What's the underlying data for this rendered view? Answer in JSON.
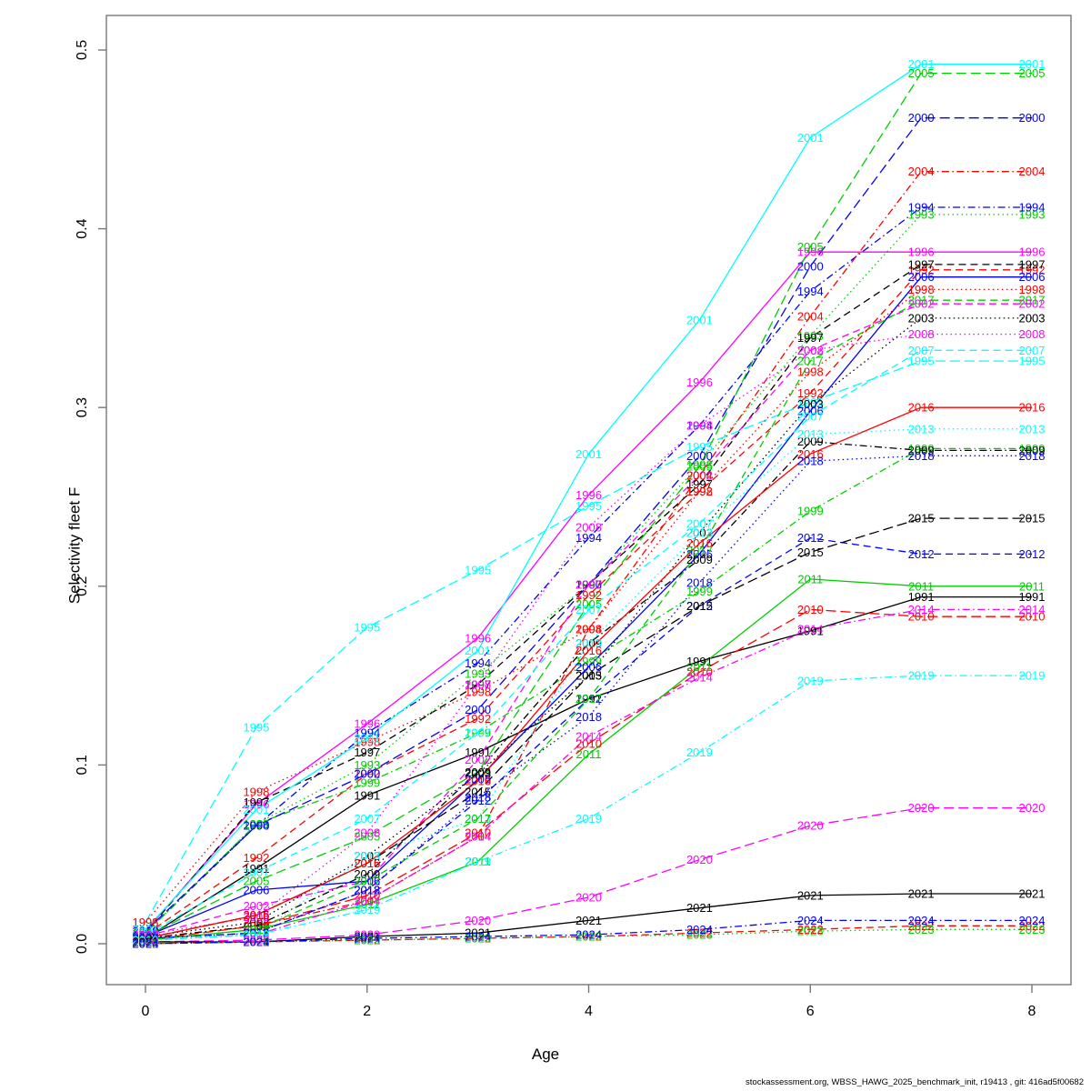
{
  "axes": {
    "x_title": "Age",
    "y_title": "Selectivity fleet F",
    "x_ticks": [
      0,
      2,
      4,
      6,
      8
    ],
    "y_ticks": [
      "0.0",
      "0.1",
      "0.2",
      "0.3",
      "0.4",
      "0.5"
    ]
  },
  "footer": "stockassessment.org, WBSS_HAWG_2025_benchmark_init, r19413 , git: 416ad5f00682",
  "chart_data": {
    "type": "line",
    "title": "",
    "xlabel": "Age",
    "ylabel": "Selectivity fleet F",
    "x": [
      0,
      1,
      2,
      3,
      4,
      5,
      6,
      7,
      8
    ],
    "xlim": [
      0,
      8
    ],
    "ylim": [
      0.0,
      0.5
    ],
    "grid": false,
    "legend": "labels-on-lines",
    "label_every_point": true,
    "series": [
      {
        "name": "1991",
        "color": "#000000",
        "linetype": "solid",
        "values": [
          0.003,
          0.042,
          0.083,
          0.107,
          0.137,
          0.158,
          0.175,
          0.194,
          0.194
        ]
      },
      {
        "name": "1992",
        "color": "#FF0000",
        "linetype": "dashed",
        "values": [
          0.005,
          0.048,
          0.095,
          0.126,
          0.195,
          0.253,
          0.308,
          0.377,
          0.377
        ]
      },
      {
        "name": "1993",
        "color": "#00CD00",
        "linetype": "dotted",
        "values": [
          0.006,
          0.067,
          0.1,
          0.151,
          0.201,
          0.268,
          0.34,
          0.408,
          0.408
        ]
      },
      {
        "name": "1994",
        "color": "#0000FF",
        "linetype": "dotdash",
        "values": [
          0.006,
          0.066,
          0.118,
          0.157,
          0.227,
          0.29,
          0.365,
          0.412,
          0.412
        ]
      },
      {
        "name": "1995",
        "color": "#00FFFF",
        "linetype": "longdash",
        "values": [
          0.012,
          0.121,
          0.177,
          0.209,
          0.245,
          0.278,
          0.303,
          0.326,
          0.326
        ]
      },
      {
        "name": "1996",
        "color": "#FF00FF",
        "linetype": "solid",
        "values": [
          0.007,
          0.078,
          0.123,
          0.171,
          0.251,
          0.314,
          0.387,
          0.387,
          0.387
        ]
      },
      {
        "name": "1997",
        "color": "#000000",
        "linetype": "dashed",
        "values": [
          0.006,
          0.079,
          0.107,
          0.145,
          0.201,
          0.257,
          0.339,
          0.38,
          0.38
        ]
      },
      {
        "name": "1998",
        "color": "#FF0000",
        "linetype": "dotted",
        "values": [
          0.012,
          0.085,
          0.113,
          0.141,
          0.176,
          0.253,
          0.32,
          0.366,
          0.366
        ]
      },
      {
        "name": "1999",
        "color": "#00CD00",
        "linetype": "dotdash",
        "values": [
          0.006,
          0.067,
          0.09,
          0.118,
          0.158,
          0.197,
          0.242,
          0.277,
          0.277
        ]
      },
      {
        "name": "2000",
        "color": "#0000FF",
        "linetype": "longdash",
        "values": [
          0.007,
          0.066,
          0.095,
          0.131,
          0.201,
          0.273,
          0.379,
          0.462,
          0.462
        ]
      },
      {
        "name": "2001",
        "color": "#00FFFF",
        "linetype": "solid",
        "values": [
          0.008,
          0.075,
          0.115,
          0.164,
          0.274,
          0.349,
          0.451,
          0.492,
          0.492
        ]
      },
      {
        "name": "2002",
        "color": "#FF00FF",
        "linetype": "dashed",
        "values": [
          0.004,
          0.021,
          0.035,
          0.103,
          0.201,
          0.262,
          0.332,
          0.358,
          0.358
        ]
      },
      {
        "name": "2003",
        "color": "#000000",
        "linetype": "dotted",
        "values": [
          0.004,
          0.012,
          0.049,
          0.095,
          0.15,
          0.23,
          0.302,
          0.35,
          0.35
        ]
      },
      {
        "name": "2004",
        "color": "#FF0000",
        "linetype": "dotdash",
        "values": [
          0.003,
          0.01,
          0.024,
          0.06,
          0.176,
          0.262,
          0.351,
          0.432,
          0.432
        ]
      },
      {
        "name": "2005",
        "color": "#00CD00",
        "linetype": "longdash",
        "values": [
          0.004,
          0.035,
          0.06,
          0.096,
          0.19,
          0.267,
          0.39,
          0.487,
          0.487
        ]
      },
      {
        "name": "2006",
        "color": "#0000FF",
        "linetype": "solid",
        "values": [
          0.004,
          0.03,
          0.035,
          0.092,
          0.155,
          0.218,
          0.298,
          0.373,
          0.373
        ]
      },
      {
        "name": "2007",
        "color": "#00FFFF",
        "linetype": "dashed",
        "values": [
          0.005,
          0.04,
          0.07,
          0.118,
          0.187,
          0.235,
          0.295,
          0.332,
          0.332
        ]
      },
      {
        "name": "2008",
        "color": "#FF00FF",
        "linetype": "dotted",
        "values": [
          0.005,
          0.015,
          0.062,
          0.145,
          0.233,
          0.29,
          0.332,
          0.341,
          0.341
        ]
      },
      {
        "name": "2009",
        "color": "#000000",
        "linetype": "dotdash",
        "values": [
          0.003,
          0.01,
          0.039,
          0.096,
          0.168,
          0.215,
          0.281,
          0.276,
          0.276
        ]
      },
      {
        "name": "2010",
        "color": "#FF0000",
        "linetype": "longdash",
        "values": [
          0.002,
          0.01,
          0.027,
          0.062,
          0.112,
          0.152,
          0.187,
          0.183,
          0.183
        ]
      },
      {
        "name": "2011",
        "color": "#00CD00",
        "linetype": "solid",
        "values": [
          0.002,
          0.008,
          0.022,
          0.046,
          0.106,
          0.155,
          0.204,
          0.2,
          0.2
        ]
      },
      {
        "name": "2012",
        "color": "#0000FF",
        "linetype": "dashed",
        "values": [
          0.003,
          0.006,
          0.03,
          0.08,
          0.137,
          0.189,
          0.227,
          0.218,
          0.218
        ]
      },
      {
        "name": "2013",
        "color": "#00FFFF",
        "linetype": "dotted",
        "values": [
          0.003,
          0.005,
          0.049,
          0.07,
          0.168,
          0.23,
          0.285,
          0.288,
          0.288
        ]
      },
      {
        "name": "2014",
        "color": "#FF00FF",
        "linetype": "dotdash",
        "values": [
          0.002,
          0.005,
          0.024,
          0.06,
          0.116,
          0.149,
          0.176,
          0.187,
          0.187
        ]
      },
      {
        "name": "2015",
        "color": "#000000",
        "linetype": "longdash",
        "values": [
          0.003,
          0.016,
          0.045,
          0.085,
          0.15,
          0.189,
          0.219,
          0.238,
          0.238
        ]
      },
      {
        "name": "2016",
        "color": "#FF0000",
        "linetype": "solid",
        "values": [
          0.003,
          0.016,
          0.045,
          0.091,
          0.164,
          0.224,
          0.274,
          0.3,
          0.3
        ]
      },
      {
        "name": "2017",
        "color": "#00CD00",
        "linetype": "dashed",
        "values": [
          0.002,
          0.008,
          0.035,
          0.07,
          0.137,
          0.22,
          0.326,
          0.36,
          0.36
        ]
      },
      {
        "name": "2018",
        "color": "#0000FF",
        "linetype": "dotted",
        "values": [
          0.003,
          0.006,
          0.03,
          0.082,
          0.127,
          0.202,
          0.27,
          0.273,
          0.273
        ]
      },
      {
        "name": "2019",
        "color": "#00FFFF",
        "linetype": "dotdash",
        "values": [
          0.002,
          0.005,
          0.019,
          0.046,
          0.07,
          0.107,
          0.147,
          0.15,
          0.15
        ]
      },
      {
        "name": "2020",
        "color": "#FF00FF",
        "linetype": "longdash",
        "values": [
          0.001,
          0.002,
          0.005,
          0.013,
          0.026,
          0.047,
          0.066,
          0.076,
          0.076
        ]
      },
      {
        "name": "2021",
        "color": "#000000",
        "linetype": "solid",
        "values": [
          0.001,
          0.001,
          0.004,
          0.006,
          0.013,
          0.02,
          0.027,
          0.028,
          0.028
        ]
      },
      {
        "name": "2022",
        "color": "#FF0000",
        "linetype": "dashed",
        "values": [
          0.0,
          0.001,
          0.002,
          0.003,
          0.004,
          0.006,
          0.008,
          0.01,
          0.01
        ]
      },
      {
        "name": "2023",
        "color": "#00CD00",
        "linetype": "dotted",
        "values": [
          0.0,
          0.001,
          0.002,
          0.003,
          0.004,
          0.005,
          0.007,
          0.008,
          0.008
        ]
      },
      {
        "name": "2024",
        "color": "#0000FF",
        "linetype": "dotdash",
        "values": [
          0.0,
          0.001,
          0.003,
          0.004,
          0.005,
          0.008,
          0.013,
          0.013,
          0.013
        ]
      }
    ]
  }
}
